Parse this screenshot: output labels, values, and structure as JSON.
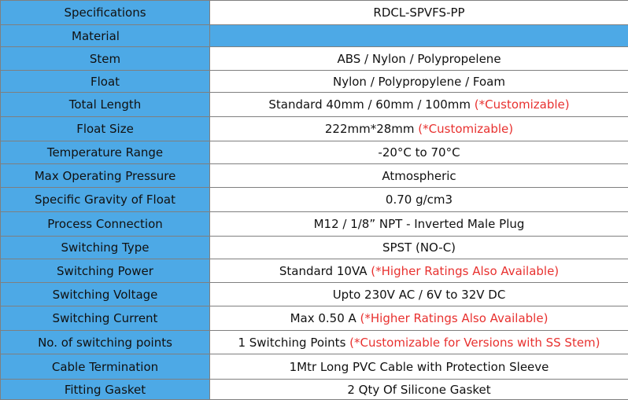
{
  "table": {
    "header": {
      "label": "Specifications",
      "value": "RDCL-SPVFS-PP"
    },
    "material_label": "Material",
    "rows": [
      {
        "label": "Stem",
        "value": "ABS / Nylon / Polypropelene",
        "note": ""
      },
      {
        "label": "Float",
        "value": "Nylon / Polypropylene / Foam",
        "note": ""
      },
      {
        "label": "Total Length",
        "value": "Standard 40mm / 60mm / 100mm ",
        "note": "(*Customizable)"
      },
      {
        "label": "Float Size",
        "value": "222mm*28mm ",
        "note": "(*Customizable)"
      },
      {
        "label": "Temperature Range",
        "value": "-20°C to 70°C",
        "note": ""
      },
      {
        "label": "Max Operating Pressure",
        "value": "Atmospheric",
        "note": ""
      },
      {
        "label": "Specific Gravity of Float",
        "value": "0.70 g/cm3",
        "note": ""
      },
      {
        "label": "Process Connection",
        "value": "M12 / 1/8” NPT - Inverted Male Plug",
        "note": ""
      },
      {
        "label": "Switching Type",
        "value": "SPST (NO-C)",
        "note": ""
      },
      {
        "label": "Switching Power",
        "value": "Standard 10VA ",
        "note": "(*Higher Ratings Also Available)"
      },
      {
        "label": "Switching Voltage",
        "value": "Upto 230V AC / 6V to 32V DC",
        "note": ""
      },
      {
        "label": "Switching Current",
        "value": "Max 0.50 A ",
        "note": "(*Higher Ratings Also Available)"
      },
      {
        "label": "No. of switching points",
        "value": "1 Switching Points ",
        "note": "(*Customizable for Versions with SS Stem)"
      },
      {
        "label": "Cable Termination",
        "value": "1Mtr Long PVC Cable with Protection Sleeve",
        "note": ""
      },
      {
        "label": "Fitting Gasket",
        "value": "2 Qty Of  Silicone Gasket",
        "note": ""
      }
    ]
  },
  "colors": {
    "label_bg": "#4da9e6",
    "note": "#e8312f",
    "border": "#7f7f7f"
  }
}
